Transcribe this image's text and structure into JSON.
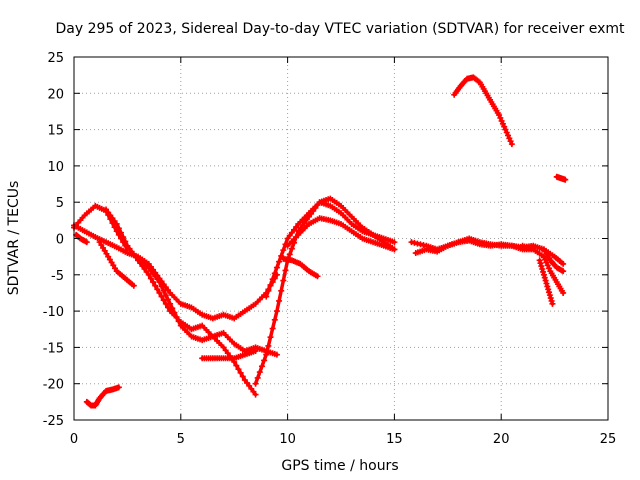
{
  "chart_data": {
    "type": "scatter",
    "title": "Day 295 of 2023, Sidereal Day-to-day VTEC variation (SDTVAR) for receiver exmt",
    "xlabel": "GPS time / hours",
    "ylabel": "SDTVAR / TECUs",
    "xlim": [
      0,
      25
    ],
    "ylim": [
      -25,
      25
    ],
    "xticks": [
      0,
      5,
      10,
      15,
      20,
      25
    ],
    "yticks": [
      -25,
      -20,
      -15,
      -10,
      -5,
      0,
      5,
      10,
      15,
      20,
      25
    ],
    "xtick_labels": [
      "0",
      "5",
      "10",
      "15",
      "20",
      "25"
    ],
    "ytick_labels": [
      "-25",
      "-20",
      "-15",
      "-10",
      "-5",
      "0",
      "5",
      "10",
      "15",
      "20",
      "25"
    ],
    "grid": true,
    "legend": "none",
    "color": "#ff0000",
    "marker": "plus",
    "series": [
      {
        "name": "track-1",
        "x": [
          0.0,
          0.5,
          1.0,
          1.5,
          2.0,
          2.5
        ],
        "y": [
          1.5,
          3.2,
          4.5,
          3.8,
          1.0,
          -1.5
        ]
      },
      {
        "name": "track-2",
        "x": [
          0.0,
          0.5,
          1.0,
          1.5,
          2.0,
          2.5,
          3.0,
          3.5,
          4.0,
          4.5,
          5.0,
          5.5,
          6.0,
          6.5,
          7.0,
          7.5,
          8.0,
          8.5,
          9.0,
          9.5
        ],
        "y": [
          1.8,
          1.0,
          0.2,
          -0.5,
          -1.2,
          -2.0,
          -2.5,
          -3.5,
          -5.5,
          -7.5,
          -9.0,
          -9.5,
          -10.5,
          -11.0,
          -10.5,
          -11.0,
          -10.0,
          -9.0,
          -7.5,
          -5.0
        ]
      },
      {
        "name": "track-3",
        "x": [
          0.1,
          0.3,
          0.6
        ],
        "y": [
          0.5,
          0.0,
          -0.5
        ]
      },
      {
        "name": "track-4",
        "x": [
          1.5,
          2.0,
          2.5,
          3.0,
          3.5,
          4.0,
          4.5,
          5.0,
          5.5,
          6.0,
          6.5,
          7.0,
          7.5,
          8.0,
          8.5,
          9.0,
          9.5
        ],
        "y": [
          4.0,
          2.0,
          -1.0,
          -3.0,
          -4.0,
          -6.0,
          -9.0,
          -12.0,
          -13.5,
          -14.0,
          -13.5,
          -13.0,
          -14.5,
          -15.5,
          -15.0,
          -15.5,
          -16.0
        ]
      },
      {
        "name": "track-5",
        "x": [
          1.2,
          1.6,
          2.0,
          2.4,
          2.8
        ],
        "y": [
          -0.5,
          -2.5,
          -4.5,
          -5.5,
          -6.5
        ]
      },
      {
        "name": "track-6",
        "x": [
          3.0,
          3.5,
          4.0,
          4.5,
          5.0,
          5.5,
          6.0,
          6.5,
          7.0,
          7.5,
          8.0,
          8.5
        ],
        "y": [
          -3.0,
          -5.0,
          -7.5,
          -10.0,
          -11.5,
          -12.5,
          -12.0,
          -13.5,
          -15.0,
          -17.0,
          -19.5,
          -21.5
        ]
      },
      {
        "name": "track-7",
        "x": [
          6.0,
          6.5,
          7.0,
          7.5,
          8.0,
          8.5
        ],
        "y": [
          -16.5,
          -16.5,
          -16.5,
          -16.5,
          -16.0,
          -15.5
        ]
      },
      {
        "name": "track-8",
        "x": [
          8.5,
          9.0,
          9.5,
          10.0,
          10.5,
          11.0,
          11.5,
          12.0,
          12.5,
          13.0,
          13.5,
          14.0,
          14.5,
          15.0
        ],
        "y": [
          -20.0,
          -16.0,
          -10.0,
          -3.0,
          1.0,
          3.0,
          5.0,
          5.5,
          4.5,
          3.0,
          1.5,
          0.5,
          0.0,
          -0.5
        ]
      },
      {
        "name": "track-9",
        "x": [
          9.0,
          9.5,
          10.0,
          10.5,
          11.0,
          11.5,
          12.0,
          12.5,
          13.0,
          13.5,
          14.0,
          14.5,
          15.0
        ],
        "y": [
          -8.0,
          -4.0,
          0.0,
          2.0,
          3.5,
          5.0,
          4.5,
          3.5,
          2.0,
          1.0,
          0.5,
          -0.5,
          -1.5
        ]
      },
      {
        "name": "track-10",
        "x": [
          10.0,
          10.5,
          11.0,
          11.5,
          12.0,
          12.5,
          13.0,
          13.5,
          14.0,
          14.5,
          15.0
        ],
        "y": [
          -1.0,
          0.5,
          2.0,
          2.8,
          2.5,
          2.0,
          1.0,
          0.0,
          -0.5,
          -1.0,
          -1.5
        ]
      },
      {
        "name": "track-11",
        "x": [
          9.8,
          10.2,
          10.6,
          11.0,
          11.4
        ],
        "y": [
          -2.8,
          -3.0,
          -3.5,
          -4.5,
          -5.2
        ]
      },
      {
        "name": "track-12",
        "x": [
          0.6,
          0.8,
          1.0,
          1.2,
          1.5,
          1.8,
          2.1
        ],
        "y": [
          -22.5,
          -23.0,
          -23.0,
          -22.0,
          -21.0,
          -20.8,
          -20.5
        ]
      },
      {
        "name": "track-13",
        "x": [
          15.8,
          16.5,
          17.0,
          17.5,
          18.0,
          18.5,
          19.0,
          19.5,
          20.0,
          20.5,
          21.0,
          21.5,
          22.0,
          22.5,
          22.9
        ],
        "y": [
          -0.5,
          -1.0,
          -1.5,
          -1.0,
          -0.5,
          0.0,
          -0.5,
          -0.8,
          -1.0,
          -1.0,
          -1.2,
          -1.0,
          -1.5,
          -2.5,
          -3.5
        ]
      },
      {
        "name": "track-14",
        "x": [
          16.0,
          16.5,
          17.0,
          17.5,
          18.0,
          18.5,
          19.0,
          19.5,
          20.0,
          20.5,
          21.0,
          21.5
        ],
        "y": [
          -2.0,
          -1.5,
          -1.8,
          -1.0,
          -0.5,
          -0.3,
          -0.8,
          -1.0,
          -0.8,
          -1.0,
          -1.5,
          -1.5
        ]
      },
      {
        "name": "track-15",
        "x": [
          21.0,
          21.5,
          22.0,
          22.3,
          22.6,
          22.9
        ],
        "y": [
          -1.0,
          -1.5,
          -2.5,
          -4.5,
          -6.0,
          -7.5
        ]
      },
      {
        "name": "track-16",
        "x": [
          21.8,
          22.0,
          22.2,
          22.4
        ],
        "y": [
          -3.0,
          -5.0,
          -7.0,
          -9.0
        ]
      },
      {
        "name": "track-17",
        "x": [
          22.0,
          22.3,
          22.6,
          22.9
        ],
        "y": [
          -1.5,
          -3.0,
          -4.0,
          -4.5
        ]
      },
      {
        "name": "track-18",
        "x": [
          17.8,
          18.1,
          18.4,
          18.7,
          19.0,
          19.3,
          19.6,
          19.9,
          20.2,
          20.5
        ],
        "y": [
          19.8,
          21.0,
          22.0,
          22.2,
          21.5,
          20.0,
          18.5,
          17.0,
          15.0,
          13.0
        ]
      },
      {
        "name": "track-19",
        "x": [
          22.6,
          22.8,
          23.0
        ],
        "y": [
          8.5,
          8.3,
          8.1
        ]
      }
    ]
  }
}
